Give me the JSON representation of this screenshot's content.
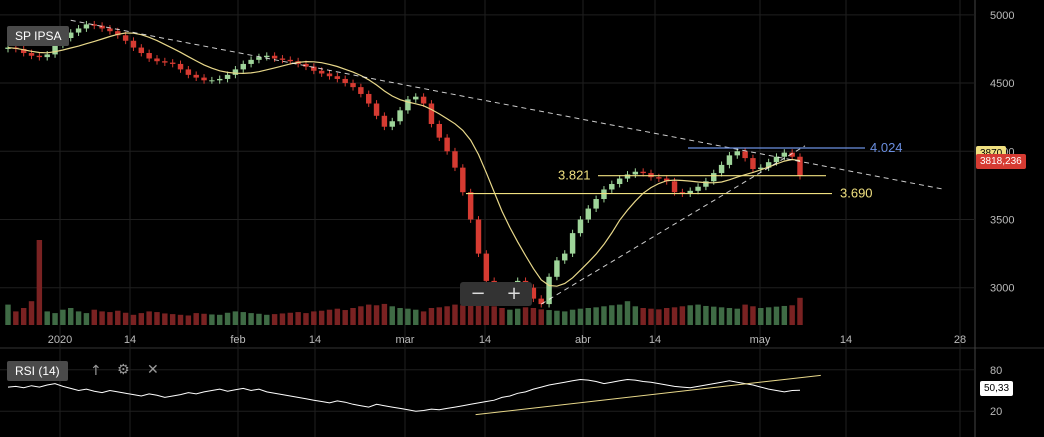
{
  "main_chart": {
    "symbol_label": "SP IPSA",
    "price_tag": "3818,236",
    "prev_tag": "3870",
    "annotations": [
      {
        "text": "4.024",
        "value": 4024,
        "color": "#6b8fe0"
      },
      {
        "text": "3.821",
        "value": 3821,
        "color": "#f0e080"
      },
      {
        "text": "3.690",
        "value": 3690,
        "color": "#f0e080"
      }
    ],
    "colors": {
      "up": "#9fd59a",
      "down": "#d63b32",
      "ma": "#e8d88a",
      "trend": "#ffffff",
      "volume_up": "#3f6b45",
      "volume_down": "#7a2222"
    }
  },
  "rsi_panel": {
    "label": "RSI (14)",
    "value_tag": "50,33",
    "icons": [
      "arrow-up-icon",
      "gear-icon",
      "close-icon"
    ]
  },
  "zoom_controls": {
    "minus": "−",
    "plus": "+"
  },
  "chart_data": [
    {
      "type": "candlestick",
      "title": "SP IPSA",
      "ylim": [
        2800,
        5050
      ],
      "y_ticks": [
        3000,
        3500,
        4000,
        4500,
        5000
      ],
      "x_tick_labels": [
        "2020",
        "14",
        "feb",
        "14",
        "mar",
        "14",
        "abr",
        "14",
        "may",
        "14",
        "28"
      ],
      "grid": true,
      "close": [
        4760,
        4750,
        4720,
        4700,
        4690,
        4710,
        4780,
        4830,
        4870,
        4900,
        4930,
        4920,
        4900,
        4880,
        4850,
        4810,
        4760,
        4720,
        4680,
        4660,
        4650,
        4640,
        4600,
        4560,
        4540,
        4520,
        4520,
        4530,
        4560,
        4600,
        4640,
        4670,
        4690,
        4700,
        4680,
        4670,
        4660,
        4640,
        4620,
        4590,
        4570,
        4550,
        4530,
        4500,
        4470,
        4420,
        4350,
        4260,
        4180,
        4220,
        4300,
        4380,
        4400,
        4350,
        4200,
        4100,
        4000,
        3880,
        3700,
        3500,
        3250,
        3050,
        2980,
        2950,
        3000,
        3050,
        3000,
        2920,
        2880,
        3080,
        3200,
        3250,
        3400,
        3500,
        3580,
        3650,
        3720,
        3760,
        3800,
        3830,
        3850,
        3840,
        3810,
        3800,
        3780,
        3700,
        3690,
        3710,
        3740,
        3780,
        3840,
        3900,
        3970,
        4000,
        3950,
        3870,
        3880,
        3920,
        3960,
        3990,
        3960,
        3818
      ],
      "volume": [
        60,
        40,
        50,
        70,
        250,
        40,
        35,
        45,
        50,
        40,
        35,
        45,
        40,
        38,
        42,
        36,
        30,
        35,
        40,
        38,
        34,
        32,
        30,
        28,
        35,
        33,
        31,
        30,
        36,
        40,
        38,
        35,
        33,
        30,
        32,
        34,
        36,
        38,
        35,
        40,
        42,
        45,
        48,
        44,
        50,
        55,
        60,
        58,
        62,
        55,
        50,
        48,
        45,
        40,
        50,
        52,
        55,
        60,
        58,
        62,
        65,
        60,
        55,
        50,
        45,
        48,
        52,
        50,
        46,
        44,
        42,
        40,
        45,
        48,
        50,
        52,
        55,
        58,
        60,
        70,
        55,
        50,
        48,
        46,
        50,
        52,
        55,
        58,
        60,
        56,
        54,
        52,
        50,
        48,
        60,
        55,
        50,
        52,
        54,
        56,
        58,
        80
      ]
    },
    {
      "type": "line",
      "title": "RSI (14)",
      "ylim": [
        0,
        100
      ],
      "y_ticks": [
        20,
        80
      ],
      "values": [
        55,
        56,
        54,
        57,
        55,
        58,
        60,
        56,
        53,
        50,
        52,
        49,
        47,
        50,
        48,
        46,
        44,
        42,
        45,
        43,
        40,
        42,
        44,
        47,
        45,
        48,
        50,
        52,
        49,
        51,
        53,
        50,
        52,
        48,
        46,
        44,
        42,
        40,
        38,
        36,
        34,
        32,
        35,
        33,
        30,
        28,
        26,
        30,
        28,
        26,
        24,
        22,
        20,
        21,
        23,
        22,
        24,
        26,
        28,
        30,
        32,
        34,
        36,
        40,
        42,
        46,
        48,
        52,
        55,
        58,
        60,
        62,
        64,
        66,
        65,
        63,
        60,
        62,
        64,
        66,
        65,
        63,
        62,
        60,
        58,
        56,
        55,
        54,
        56,
        58,
        60,
        62,
        64,
        62,
        60,
        58,
        55,
        52,
        50,
        48,
        50,
        50.33
      ],
      "trendline": [
        [
          0.3,
          15
        ],
        [
          0.9,
          72
        ]
      ]
    }
  ]
}
